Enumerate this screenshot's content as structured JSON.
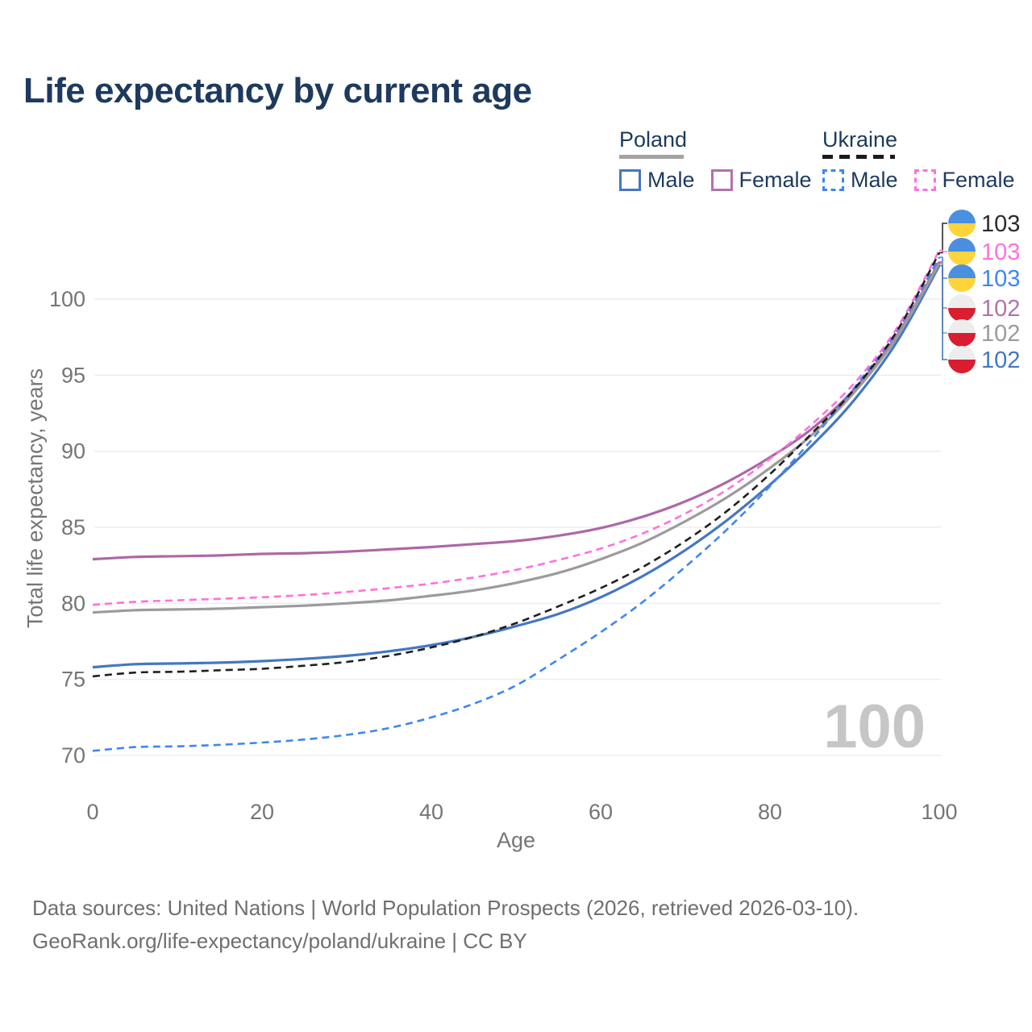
{
  "header": {
    "title": "Life expectancy by current age"
  },
  "legend": {
    "groups": [
      {
        "label": "Poland",
        "line_style": "solid",
        "underline_color": "#a3a3a3",
        "items": [
          {
            "label": "Male",
            "color": "#4577c0"
          },
          {
            "label": "Female",
            "color": "#b272ab"
          }
        ]
      },
      {
        "label": "Ukraine",
        "line_style": "dashed",
        "underline_color": "#1a1a1a",
        "items": [
          {
            "label": "Male",
            "color": "#3d87f0"
          },
          {
            "label": "Female",
            "color": "#ff70dd"
          }
        ]
      }
    ]
  },
  "chart_data": {
    "type": "line",
    "title": "Life expectancy by current age",
    "xlabel": "Age",
    "ylabel": "Total life expectancy, years",
    "x_ticks": [
      0,
      20,
      40,
      60,
      80,
      100
    ],
    "y_ticks": [
      70,
      75,
      80,
      85,
      90,
      95,
      100
    ],
    "xlim": [
      0,
      100
    ],
    "ylim": [
      68,
      104.5
    ],
    "grid": "horizontal-only",
    "legend_position": "top-right",
    "x": [
      0,
      5,
      10,
      15,
      20,
      25,
      30,
      35,
      40,
      45,
      50,
      55,
      60,
      65,
      70,
      75,
      80,
      85,
      90,
      95,
      100
    ],
    "series": [
      {
        "name": "Poland Male",
        "country": "Poland",
        "sex": "Male",
        "style": "solid",
        "color": "#4577c0",
        "values": [
          75.8,
          76.0,
          76.05,
          76.1,
          76.2,
          76.35,
          76.55,
          76.85,
          77.25,
          77.8,
          78.5,
          79.3,
          80.4,
          81.8,
          83.5,
          85.5,
          87.8,
          90.4,
          93.4,
          97.2,
          102.2
        ],
        "end_label": "102"
      },
      {
        "name": "Poland Female",
        "country": "Poland",
        "sex": "Female",
        "style": "solid",
        "color": "#ae67a7",
        "values": [
          82.9,
          83.05,
          83.1,
          83.15,
          83.25,
          83.3,
          83.4,
          83.55,
          83.7,
          83.9,
          84.1,
          84.45,
          84.95,
          85.7,
          86.7,
          88.0,
          89.6,
          91.5,
          94.1,
          97.6,
          102.45
        ],
        "end_label": "102"
      },
      {
        "name": "Poland Both sexes",
        "country": "Poland",
        "sex": "Both",
        "style": "solid",
        "color": "#9b9b9b",
        "values": [
          79.4,
          79.55,
          79.6,
          79.65,
          79.75,
          79.85,
          80.0,
          80.2,
          80.5,
          80.85,
          81.35,
          82.0,
          82.9,
          84.0,
          85.4,
          87.0,
          88.9,
          91.1,
          93.9,
          97.5,
          102.35
        ],
        "end_label": "102"
      },
      {
        "name": "Ukraine Male",
        "country": "Ukraine",
        "sex": "Male",
        "style": "dashed",
        "color": "#3d87f0",
        "values": [
          70.3,
          70.55,
          70.6,
          70.7,
          70.85,
          71.05,
          71.35,
          71.8,
          72.5,
          73.4,
          74.6,
          76.3,
          78.1,
          80.1,
          82.4,
          84.9,
          87.7,
          90.8,
          94.2,
          97.9,
          102.75
        ],
        "end_label": "103"
      },
      {
        "name": "Ukraine Female",
        "country": "Ukraine",
        "sex": "Female",
        "style": "dashed",
        "color": "#ff70dd",
        "values": [
          79.9,
          80.1,
          80.2,
          80.3,
          80.4,
          80.55,
          80.75,
          81.0,
          81.3,
          81.7,
          82.2,
          82.85,
          83.6,
          84.6,
          85.9,
          87.5,
          89.5,
          91.8,
          94.5,
          98.1,
          103.2
        ],
        "end_label": "103"
      },
      {
        "name": "Ukraine Both sexes",
        "country": "Ukraine",
        "sex": "Both",
        "style": "dashed",
        "color": "#1f1f1f",
        "values": [
          75.2,
          75.45,
          75.5,
          75.6,
          75.7,
          75.9,
          76.15,
          76.55,
          77.1,
          77.8,
          78.7,
          79.8,
          81.0,
          82.4,
          84.1,
          86.1,
          88.5,
          91.2,
          94.1,
          97.9,
          103.05
        ],
        "end_label": "103"
      }
    ],
    "end_labels": [
      {
        "text": "103",
        "series": "Ukraine Both sexes",
        "flag": "ukraine",
        "color": "#2b2b2b"
      },
      {
        "text": "103",
        "series": "Ukraine Female",
        "flag": "ukraine",
        "color": "#ff70dd"
      },
      {
        "text": "103",
        "series": "Ukraine Male",
        "flag": "ukraine",
        "color": "#3d87f0"
      },
      {
        "text": "102",
        "series": "Poland Female",
        "flag": "poland",
        "color": "#b272ab"
      },
      {
        "text": "102",
        "series": "Poland Both sexes",
        "flag": "poland",
        "color": "#9b9b9b"
      },
      {
        "text": "102",
        "series": "Poland Male",
        "flag": "poland",
        "color": "#4577c0"
      }
    ],
    "flag_colors": {
      "ukraine": {
        "top": "#4a8fe0",
        "bottom": "#ffd43b"
      },
      "poland": {
        "top": "#ededed",
        "bottom": "#d81e30"
      }
    }
  },
  "watermark": "100",
  "footer": {
    "line1": "Data sources: United Nations | World Population Prospects (2026, retrieved 2026-03-10).",
    "line2": "GeoRank.org/life-expectancy/poland/ukraine | CC BY"
  }
}
